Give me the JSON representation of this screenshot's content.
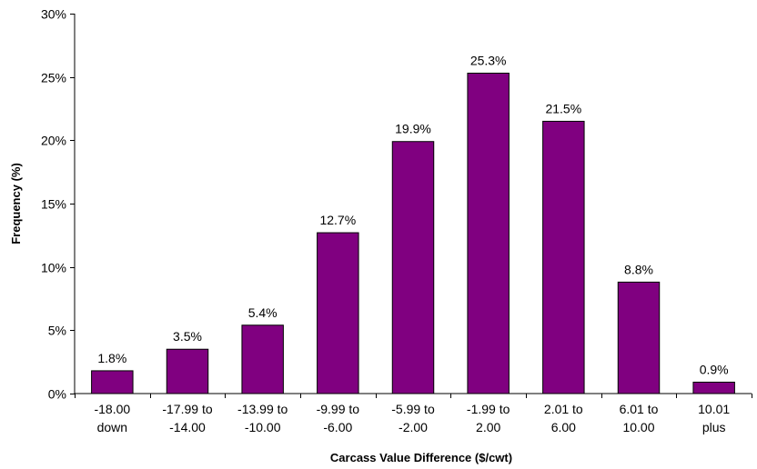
{
  "chart_data": {
    "type": "bar",
    "title": "",
    "xlabel": "Carcass Value Difference ($/cwt)",
    "ylabel": "Frequency (%)",
    "ylim": [
      0,
      30
    ],
    "yticks": [
      0,
      5,
      10,
      15,
      20,
      25,
      30
    ],
    "ytick_suffix": "%",
    "grid": false,
    "legend": "none",
    "bar_color": "#800080",
    "categories": [
      [
        "-18.00",
        "down"
      ],
      [
        "-17.99 to",
        "-14.00"
      ],
      [
        "-13.99 to",
        "-10.00"
      ],
      [
        "-9.99 to",
        "-6.00"
      ],
      [
        "-5.99 to",
        "-2.00"
      ],
      [
        "-1.99 to",
        "2.00"
      ],
      [
        "2.01 to",
        "6.00"
      ],
      [
        "6.01 to",
        "10.00"
      ],
      [
        "10.01",
        "plus"
      ]
    ],
    "values": [
      1.8,
      3.5,
      5.4,
      12.7,
      19.9,
      25.3,
      21.5,
      8.8,
      0.9
    ],
    "data_labels": [
      "1.8%",
      "3.5%",
      "5.4%",
      "12.7%",
      "19.9%",
      "25.3%",
      "21.5%",
      "8.8%",
      "0.9%"
    ]
  }
}
